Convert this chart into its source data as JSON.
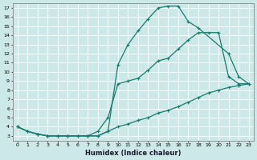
{
  "xlabel": "Humidex (Indice chaleur)",
  "ylabel": "",
  "bg_color": "#cce8e8",
  "grid_color": "#b0d4d4",
  "line_color": "#1a7a6e",
  "xlim": [
    -0.5,
    23.5
  ],
  "ylim": [
    2.5,
    17.5
  ],
  "yticks": [
    3,
    4,
    5,
    6,
    7,
    8,
    9,
    10,
    11,
    12,
    13,
    14,
    15,
    16,
    17
  ],
  "xticks": [
    0,
    1,
    2,
    3,
    4,
    5,
    6,
    7,
    8,
    9,
    10,
    11,
    12,
    13,
    14,
    15,
    16,
    17,
    18,
    19,
    20,
    21,
    22,
    23
  ],
  "curve_max_x": [
    0,
    1,
    2,
    3,
    4,
    5,
    6,
    7,
    8,
    9,
    10,
    11,
    12,
    13,
    14,
    15,
    16,
    17,
    18,
    21,
    22,
    23
  ],
  "curve_max_y": [
    4,
    3.5,
    3.2,
    3,
    3,
    3,
    3,
    3,
    3,
    3.5,
    10.8,
    13.0,
    14.5,
    15.8,
    17.0,
    17.2,
    17.2,
    15.5,
    14.8,
    12.0,
    9.5,
    8.7
  ],
  "curve_mid_x": [
    0,
    1,
    2,
    3,
    4,
    5,
    6,
    7,
    8,
    9,
    10,
    11,
    12,
    13,
    14,
    15,
    16,
    17,
    18,
    19,
    20,
    21,
    22,
    23
  ],
  "curve_mid_y": [
    4,
    3.5,
    3.2,
    3,
    3,
    3,
    3,
    3,
    3.5,
    5.0,
    8.7,
    9.0,
    9.3,
    10.2,
    11.2,
    11.5,
    12.5,
    13.5,
    14.3,
    14.3,
    14.3,
    9.5,
    8.7,
    8.7
  ],
  "curve_min_x": [
    0,
    1,
    2,
    3,
    4,
    5,
    6,
    7,
    8,
    9,
    10,
    11,
    12,
    13,
    14,
    15,
    16,
    17,
    18,
    19,
    20,
    21,
    22,
    23
  ],
  "curve_min_y": [
    4,
    3.5,
    3.2,
    3,
    3,
    3,
    3,
    3,
    3,
    3.5,
    4.0,
    4.3,
    4.7,
    5.0,
    5.5,
    5.8,
    6.2,
    6.7,
    7.2,
    7.7,
    8.0,
    8.3,
    8.5,
    8.7
  ]
}
